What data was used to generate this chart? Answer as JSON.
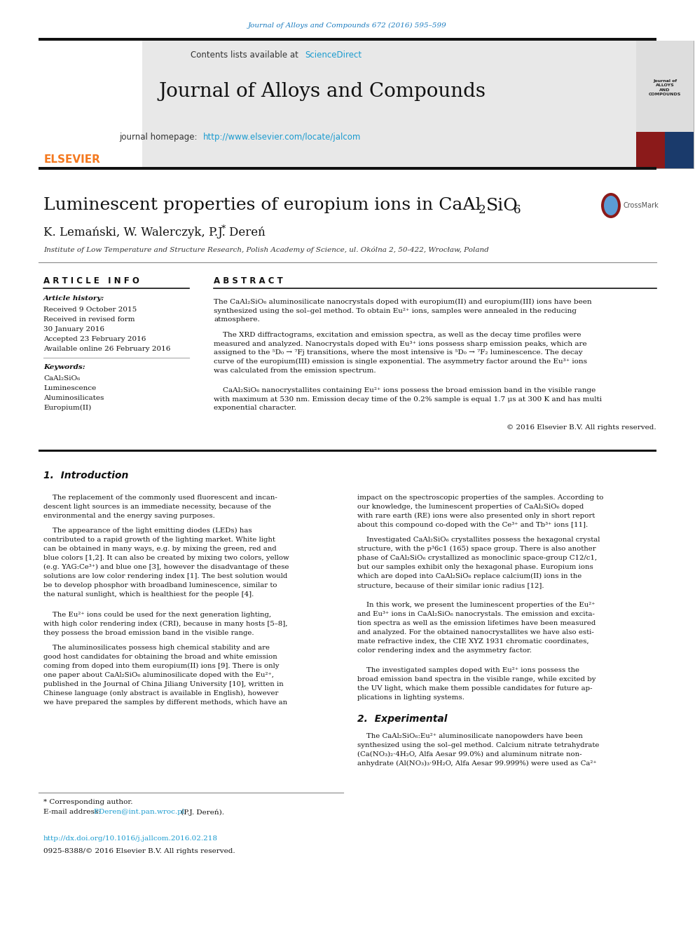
{
  "page_bg": "#ffffff",
  "journal_citation": "Journal of Alloys and Compounds 672 (2016) 595–599",
  "journal_citation_color": "#1a7bbf",
  "header_text": "Contents lists available at",
  "sciencedirect_text": "ScienceDirect",
  "sciencedirect_color": "#1a9bcf",
  "journal_name": "Journal of Alloys and Compounds",
  "homepage_label": "journal homepage:",
  "homepage_url": "http://www.elsevier.com/locate/jalcom",
  "homepage_color": "#1a9bcf",
  "authors": "K. Lemański, W. Walerczyk, P.J. Dereń",
  "affiliation": "Institute of Low Temperature and Structure Research, Polish Academy of Science, ul. Okólna 2, 50-422, Wrocław, Poland",
  "article_info_title": "A R T I C L E   I N F O",
  "article_history_label": "Article history:",
  "received_1": "Received 9 October 2015",
  "revised": "Received in revised form",
  "revised_date": "30 January 2016",
  "accepted": "Accepted 23 February 2016",
  "online": "Available online 26 February 2016",
  "keywords_label": "Keywords:",
  "keyword1": "CaAl₂SiO₆",
  "keyword2": "Luminescence",
  "keyword3": "Aluminosilicates",
  "keyword4": "Europium(II)",
  "abstract_title": "A B S T R A C T",
  "copyright": "© 2016 Elsevier B.V. All rights reserved.",
  "section1_title": "1.  Introduction",
  "section2_title": "2.  Experimental",
  "footer_star": "* Corresponding author.",
  "footer_email_label": "E-mail address:",
  "footer_email": "P.Deren@int.pan.wroc.pl",
  "footer_email_name": "(P.J. Dereń).",
  "footer_doi": "http://dx.doi.org/10.1016/j.jallcom.2016.02.218",
  "footer_issn": "0925-8388/© 2016 Elsevier B.V. All rights reserved.",
  "link_color": "#1a9bcf",
  "elsevier_orange": "#f47920"
}
